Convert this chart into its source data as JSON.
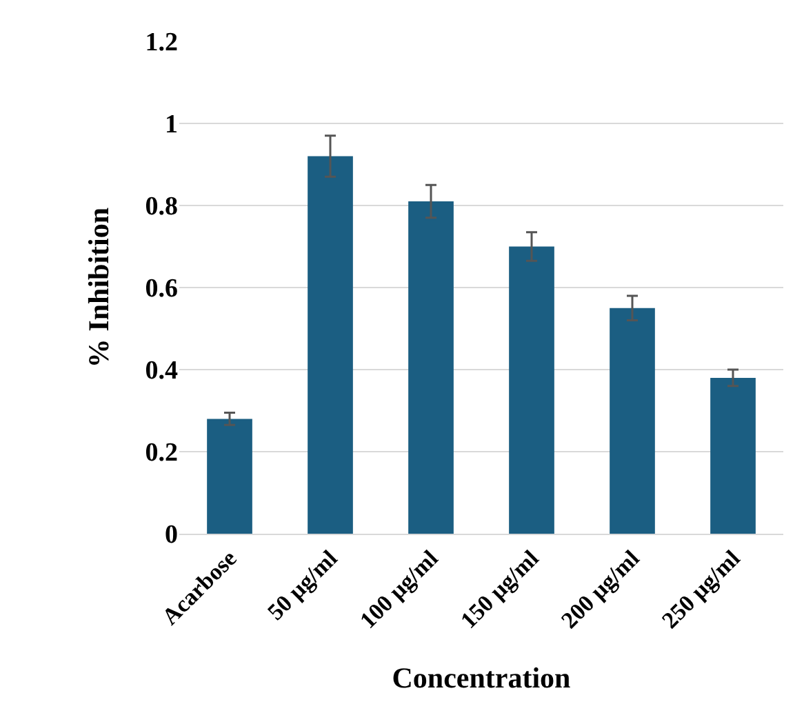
{
  "chart_data": {
    "type": "bar",
    "xlabel": "Concentration",
    "ylabel": "% Inhibition",
    "categories": [
      "Acarbose",
      "50 µg/ml",
      "100 µg/ml",
      "150 µg/ml",
      "200 µg/ml",
      "250 µg/ml"
    ],
    "values": [
      0.28,
      0.92,
      0.81,
      0.7,
      0.55,
      0.38
    ],
    "errors": [
      0.015,
      0.05,
      0.04,
      0.035,
      0.03,
      0.02
    ],
    "color": "#1b5e82",
    "ylim": [
      0,
      1.2
    ],
    "yticks": [
      0,
      0.2,
      0.4,
      0.6,
      0.8,
      1,
      1.2
    ],
    "grid": "y",
    "legend": false
  }
}
